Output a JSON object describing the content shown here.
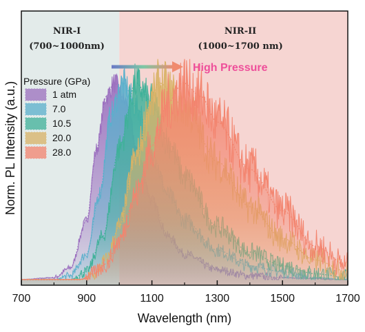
{
  "chart_data": {
    "type": "area",
    "xlabel": "Wavelength (nm)",
    "ylabel": "Norm. PL Intensity (a.u.)",
    "xlim": [
      700,
      1700
    ],
    "x_ticks": [
      "700",
      "900",
      "1100",
      "1300",
      "1500",
      "1700"
    ],
    "grid": false,
    "regions": [
      {
        "label": "NIR-I",
        "range_label": "(700~1000nm)",
        "x_start": 700,
        "x_end": 1000,
        "color": "#e3ebea"
      },
      {
        "label": "NIR-II",
        "range_label": "(1000~1700 nm)",
        "x_start": 1000,
        "x_end": 1700,
        "color": "#f6d5d2"
      }
    ],
    "legend": {
      "title": "Pressure (GPa)",
      "placement": "upper-left"
    },
    "annotation": {
      "text": "High Pressure",
      "color": "#ee4f9a"
    },
    "series": [
      {
        "name": "1 atm",
        "color": "#9b6fbf",
        "peak_nm": 985,
        "fwhm_nm": 165,
        "points": [
          [
            700,
            0.0
          ],
          [
            800,
            0.01
          ],
          [
            850,
            0.06
          ],
          [
            900,
            0.3
          ],
          [
            930,
            0.66
          ],
          [
            960,
            0.93
          ],
          [
            985,
            1.0
          ],
          [
            1020,
            0.9
          ],
          [
            1060,
            0.62
          ],
          [
            1100,
            0.4
          ],
          [
            1150,
            0.22
          ],
          [
            1200,
            0.13
          ],
          [
            1300,
            0.05
          ],
          [
            1400,
            0.02
          ],
          [
            1500,
            0.01
          ],
          [
            1700,
            0.0
          ]
        ]
      },
      {
        "name": "7.0",
        "color": "#5ab0cc",
        "peak_nm": 1010,
        "fwhm_nm": 205,
        "points": [
          [
            700,
            0.0
          ],
          [
            800,
            0.0
          ],
          [
            850,
            0.02
          ],
          [
            900,
            0.13
          ],
          [
            940,
            0.44
          ],
          [
            975,
            0.84
          ],
          [
            1010,
            1.0
          ],
          [
            1060,
            0.86
          ],
          [
            1100,
            0.64
          ],
          [
            1150,
            0.43
          ],
          [
            1200,
            0.3
          ],
          [
            1300,
            0.15
          ],
          [
            1400,
            0.07
          ],
          [
            1500,
            0.04
          ],
          [
            1600,
            0.01
          ],
          [
            1700,
            0.0
          ]
        ]
      },
      {
        "name": "10.5",
        "color": "#3fb199",
        "peak_nm": 1050,
        "fwhm_nm": 250,
        "points": [
          [
            700,
            0.0
          ],
          [
            850,
            0.0
          ],
          [
            900,
            0.04
          ],
          [
            950,
            0.22
          ],
          [
            1000,
            0.67
          ],
          [
            1050,
            1.0
          ],
          [
            1100,
            0.9
          ],
          [
            1150,
            0.7
          ],
          [
            1200,
            0.52
          ],
          [
            1300,
            0.27
          ],
          [
            1400,
            0.14
          ],
          [
            1500,
            0.07
          ],
          [
            1600,
            0.03
          ],
          [
            1700,
            0.01
          ]
        ]
      },
      {
        "name": "20.0",
        "color": "#d9b266",
        "peak_nm": 1120,
        "fwhm_nm": 320,
        "points": [
          [
            700,
            0.0
          ],
          [
            880,
            0.0
          ],
          [
            920,
            0.02
          ],
          [
            960,
            0.1
          ],
          [
            1000,
            0.27
          ],
          [
            1050,
            0.62
          ],
          [
            1100,
            0.91
          ],
          [
            1120,
            1.0
          ],
          [
            1200,
            0.88
          ],
          [
            1300,
            0.6
          ],
          [
            1400,
            0.37
          ],
          [
            1500,
            0.21
          ],
          [
            1600,
            0.1
          ],
          [
            1700,
            0.04
          ]
        ]
      },
      {
        "name": "28.0",
        "color": "#f3846e",
        "peak_nm": 1195,
        "fwhm_nm": 370,
        "points": [
          [
            700,
            0.0
          ],
          [
            880,
            0.0
          ],
          [
            920,
            0.03
          ],
          [
            960,
            0.08
          ],
          [
            1000,
            0.2
          ],
          [
            1050,
            0.43
          ],
          [
            1100,
            0.68
          ],
          [
            1150,
            0.9
          ],
          [
            1195,
            1.0
          ],
          [
            1250,
            0.93
          ],
          [
            1300,
            0.8
          ],
          [
            1400,
            0.56
          ],
          [
            1500,
            0.35
          ],
          [
            1600,
            0.17
          ],
          [
            1700,
            0.07
          ]
        ]
      }
    ]
  }
}
